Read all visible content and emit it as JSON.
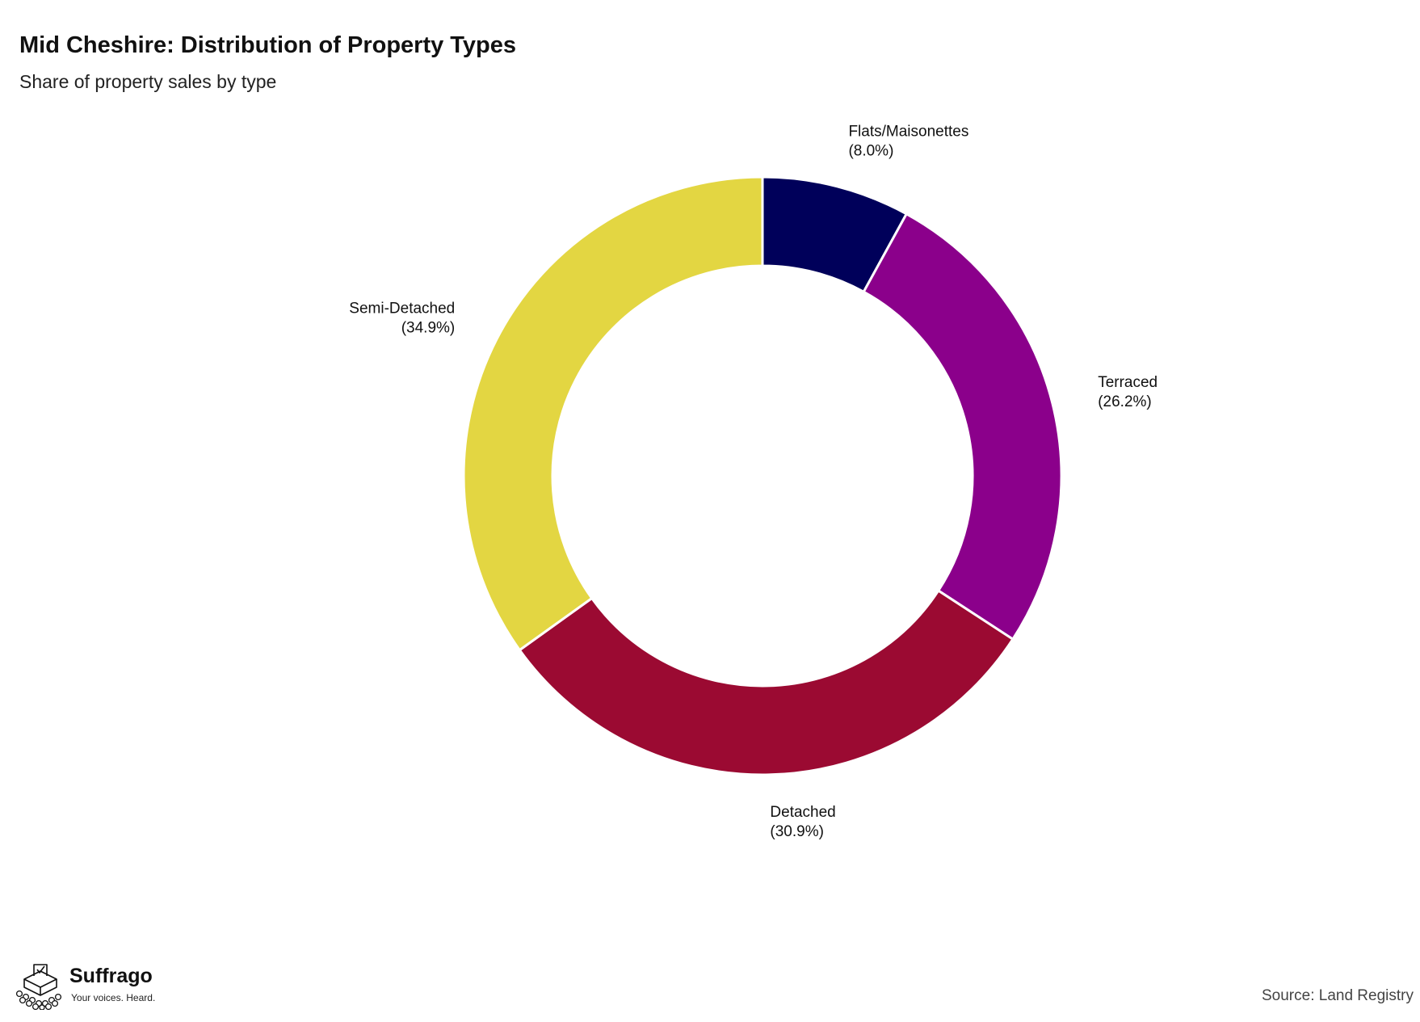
{
  "chart_data": {
    "type": "pie",
    "donut": true,
    "title": "Mid Cheshire: Distribution of Property Types",
    "subtitle": "Share of property sales by type",
    "categories": [
      "Flats/Maisonettes",
      "Terraced",
      "Detached",
      "Semi-Detached"
    ],
    "values": [
      8.0,
      26.2,
      30.9,
      34.9
    ],
    "labels": [
      "(8.0%)",
      "(26.2%)",
      "(30.9%)",
      "(34.9%)"
    ],
    "colors": [
      "#00005a",
      "#8b008b",
      "#9b0a32",
      "#e3d642"
    ],
    "legend": "none"
  },
  "branding": {
    "name": "Suffrago",
    "tagline": "Your voices. Heard.",
    "logo_icon": "ballot-box-icon"
  },
  "source": "Source: Land Registry"
}
